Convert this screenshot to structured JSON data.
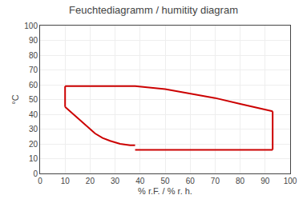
{
  "chart_data": {
    "type": "line",
    "title": "Feuchtediagramm / humitity diagram",
    "xlabel": "% r.F. / % r. h.",
    "ylabel": "°C",
    "series": [
      {
        "color": "#cc0000",
        "x": [
          10,
          38,
          50,
          60,
          70,
          80,
          93
        ],
        "values": [
          59,
          59,
          57,
          54,
          51,
          47,
          42
        ]
      },
      {
        "color": "#cc0000",
        "x": [
          93,
          93
        ],
        "values": [
          42,
          16
        ]
      },
      {
        "color": "#cc0000",
        "x": [
          93,
          80,
          60,
          38
        ],
        "values": [
          16,
          16,
          16,
          16
        ]
      },
      {
        "color": "#cc0000",
        "x": [
          10,
          12,
          14,
          16,
          18,
          20,
          22,
          25,
          28,
          32,
          36,
          38
        ],
        "values": [
          45,
          42,
          39,
          36,
          33,
          30,
          27,
          24,
          22,
          20,
          19,
          19
        ]
      },
      {
        "color": "#cc0000",
        "x": [
          10,
          10
        ],
        "values": [
          45,
          59
        ]
      }
    ],
    "xlim": [
      0,
      100
    ],
    "ylim": [
      0,
      100
    ],
    "xticks": [
      0,
      10,
      20,
      30,
      40,
      50,
      60,
      70,
      80,
      90,
      100
    ],
    "yticks": [
      0,
      10,
      20,
      30,
      40,
      50,
      60,
      70,
      80,
      90,
      100
    ],
    "grid": true
  }
}
